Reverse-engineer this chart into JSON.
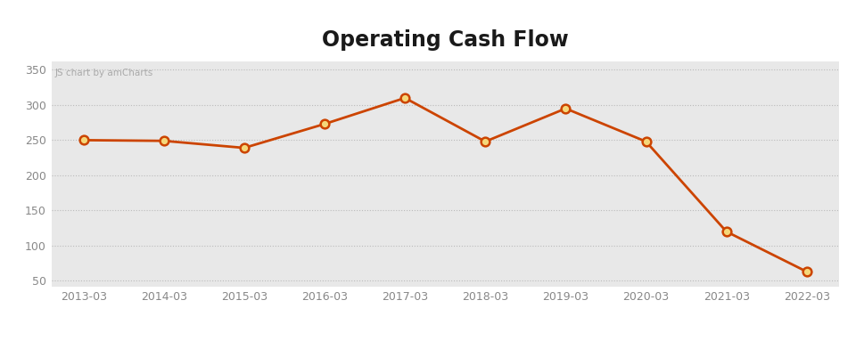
{
  "title": "Operating Cash Flow",
  "x_labels": [
    "2013-03",
    "2014-03",
    "2015-03",
    "2016-03",
    "2017-03",
    "2018-03",
    "2019-03",
    "2020-03",
    "2021-03",
    "2022-03"
  ],
  "y_values": [
    250,
    249,
    239,
    273,
    310,
    248,
    295,
    248,
    120,
    63
  ],
  "y_ticks": [
    50,
    100,
    150,
    200,
    250,
    300,
    350
  ],
  "y_min": 42,
  "y_max": 362,
  "line_color": "#cc4400",
  "marker_face_color": "#f5d87a",
  "marker_edge_color": "#cc4400",
  "plot_area_color": "#e8e8e8",
  "fig_bg_color": "#ffffff",
  "title_color": "#1a1a1a",
  "title_fontsize": 17,
  "watermark_text": "JS chart by amCharts",
  "watermark_color": "#aaaaaa",
  "watermark_fontsize": 7.5,
  "grid_color": "#bbbbbb",
  "tick_label_color": "#888888",
  "tick_fontsize": 9
}
